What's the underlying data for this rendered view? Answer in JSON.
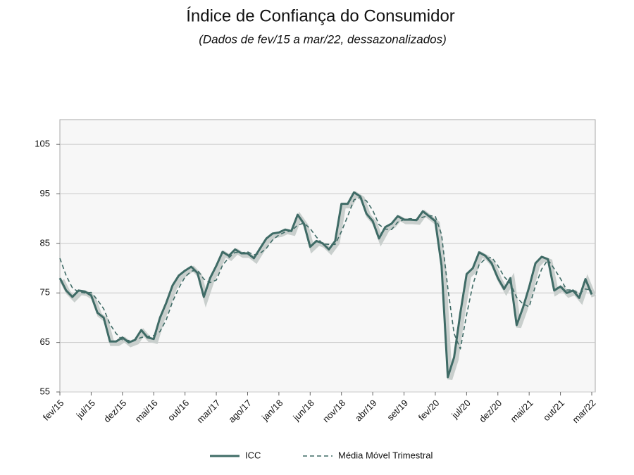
{
  "chart_data": {
    "type": "line",
    "title": "Índice de Confiança do Consumidor",
    "subtitle": "(Dados de fev/15 a mar/22, dessazonalizados)",
    "categories": [
      "fev/15",
      null,
      null,
      null,
      null,
      "jul/15",
      null,
      null,
      null,
      null,
      "dez/15",
      null,
      null,
      null,
      null,
      "mai/16",
      null,
      null,
      null,
      null,
      "out/16",
      null,
      null,
      null,
      null,
      "mar/17",
      null,
      null,
      null,
      null,
      "ago/17",
      null,
      null,
      null,
      null,
      "jan/18",
      null,
      null,
      null,
      null,
      "jun/18",
      null,
      null,
      null,
      null,
      "nov/18",
      null,
      null,
      null,
      null,
      "abr/19",
      null,
      null,
      null,
      null,
      "set/19",
      null,
      null,
      null,
      null,
      "fev/20",
      null,
      null,
      null,
      null,
      "jul/20",
      null,
      null,
      null,
      null,
      "dez/20",
      null,
      null,
      null,
      null,
      "mai/21",
      null,
      null,
      null,
      null,
      "out/21",
      null,
      null,
      null,
      null,
      "mar/22"
    ],
    "series": [
      {
        "name": "ICC",
        "color": "#3f6b66",
        "dash": false,
        "values": [
          78,
          75.5,
          74.2,
          75.5,
          75.3,
          74.5,
          71,
          70,
          65.2,
          65.2,
          66,
          65,
          65.5,
          67.5,
          66,
          65.7,
          70,
          73,
          76.5,
          78.5,
          79.5,
          80.3,
          79,
          74.2,
          78,
          80.5,
          83.3,
          82.5,
          83.8,
          83,
          83,
          82,
          84,
          86,
          87,
          87.2,
          87.8,
          87.5,
          90.8,
          89,
          84.3,
          85.5,
          85,
          83.8,
          85.5,
          93,
          93,
          95.3,
          94.5,
          91,
          89.5,
          86,
          88.3,
          89,
          90.5,
          89.8,
          89.8,
          89.7,
          91.5,
          90.5,
          89.5,
          80.5,
          58,
          62,
          71,
          78.8,
          80,
          83.2,
          82.5,
          81,
          78,
          75.8,
          78,
          68.5,
          72,
          76.2,
          81,
          82.3,
          81.8,
          75.5,
          76.3,
          75,
          75.5,
          74,
          77.8,
          74.7
        ]
      },
      {
        "name": "Média Móvel Trimestral",
        "color": "#3f6b66",
        "dash": true,
        "values": [
          82,
          78.5,
          76,
          75.2,
          75,
          75.1,
          73.6,
          71.8,
          68.7,
          66.8,
          65.5,
          65.4,
          65.5,
          66,
          66.2,
          66.4,
          67.2,
          69.6,
          73.2,
          76,
          78.2,
          79.4,
          79.6,
          77.8,
          77.1,
          77.6,
          80.6,
          82.1,
          83.2,
          83.1,
          83.3,
          82.7,
          83,
          84,
          85.7,
          86.7,
          87.3,
          87.5,
          88.7,
          89.1,
          88,
          86.3,
          84.9,
          84.8,
          84.8,
          87.4,
          90.5,
          93.8,
          94.3,
          93.6,
          91.7,
          88.8,
          87.9,
          87.8,
          89.3,
          89.8,
          90,
          89.8,
          90.3,
          90.6,
          90.5,
          86.8,
          76,
          66.8,
          63.7,
          70.6,
          76.6,
          80.7,
          81.9,
          82.2,
          80.5,
          78.3,
          76.9,
          74.1,
          72.8,
          72.2,
          76.4,
          79.8,
          81.7,
          79.9,
          77.9,
          75.6,
          75.6,
          74.8,
          75.8,
          75.5
        ]
      }
    ],
    "ylim": [
      55,
      110
    ],
    "yticks": [
      55,
      65,
      75,
      85,
      95,
      105
    ],
    "grid": true
  }
}
